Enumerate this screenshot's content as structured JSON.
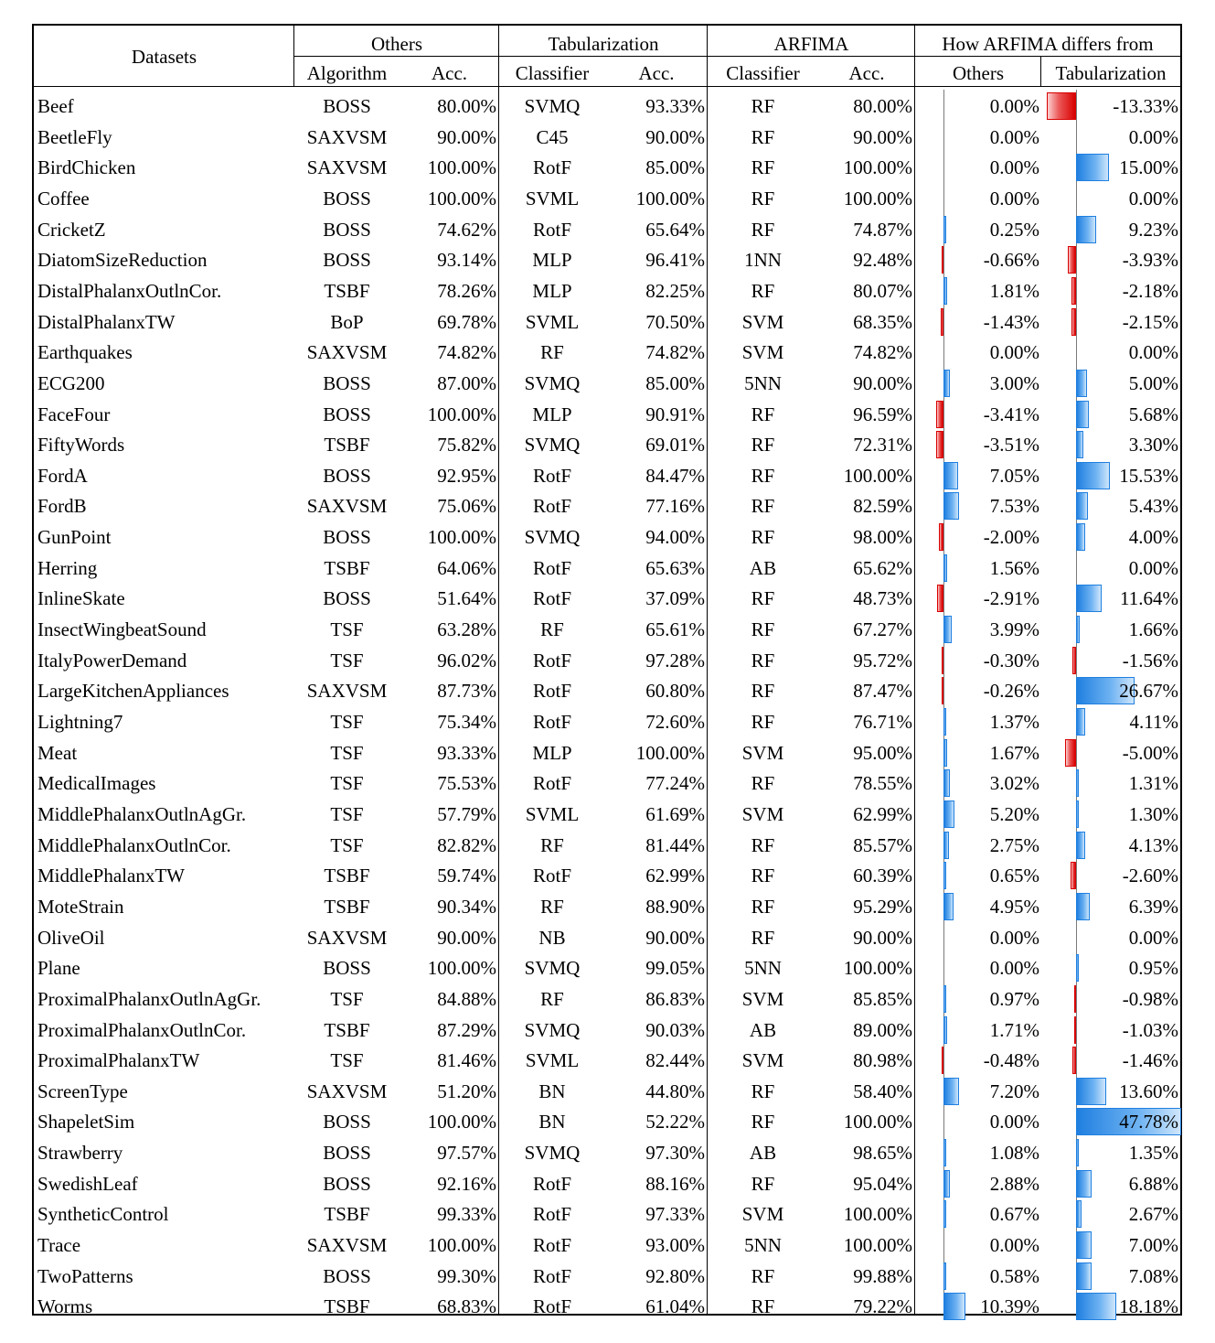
{
  "header": {
    "datasets": "Datasets",
    "others": "Others",
    "tabularization": "Tabularization",
    "arfima": "ARFIMA",
    "how": "How ARFIMA differs from",
    "algorithm": "Algorithm",
    "acc": "Acc.",
    "classifier": "Classifier",
    "diff_others": "Others",
    "diff_tab": "Tabularization"
  },
  "rows": [
    {
      "name": "Beef",
      "alg": "BOSS",
      "acc1": "80.00%",
      "cls2": "SVMQ",
      "acc2": "93.33%",
      "cls3": "RF",
      "acc3": "80.00%",
      "d1": "0.00%",
      "d1v": 0.0,
      "d2": "-13.33%",
      "d2v": -13.33
    },
    {
      "name": "BeetleFly",
      "alg": "SAXVSM",
      "acc1": "90.00%",
      "cls2": "C45",
      "acc2": "90.00%",
      "cls3": "RF",
      "acc3": "90.00%",
      "d1": "0.00%",
      "d1v": 0.0,
      "d2": "0.00%",
      "d2v": 0.0
    },
    {
      "name": "BirdChicken",
      "alg": "SAXVSM",
      "acc1": "100.00%",
      "cls2": "RotF",
      "acc2": "85.00%",
      "cls3": "RF",
      "acc3": "100.00%",
      "d1": "0.00%",
      "d1v": 0.0,
      "d2": "15.00%",
      "d2v": 15.0
    },
    {
      "name": "Coffee",
      "alg": "BOSS",
      "acc1": "100.00%",
      "cls2": "SVML",
      "acc2": "100.00%",
      "cls3": "RF",
      "acc3": "100.00%",
      "d1": "0.00%",
      "d1v": 0.0,
      "d2": "0.00%",
      "d2v": 0.0
    },
    {
      "name": "CricketZ",
      "alg": "BOSS",
      "acc1": "74.62%",
      "cls2": "RotF",
      "acc2": "65.64%",
      "cls3": "RF",
      "acc3": "74.87%",
      "d1": "0.25%",
      "d1v": 0.25,
      "d2": "9.23%",
      "d2v": 9.23
    },
    {
      "name": "DiatomSizeReduction",
      "alg": "BOSS",
      "acc1": "93.14%",
      "cls2": "MLP",
      "acc2": "96.41%",
      "cls3": "1NN",
      "acc3": "92.48%",
      "d1": "-0.66%",
      "d1v": -0.66,
      "d2": "-3.93%",
      "d2v": -3.93
    },
    {
      "name": "DistalPhalanxOutlnCor.",
      "alg": "TSBF",
      "acc1": "78.26%",
      "cls2": "MLP",
      "acc2": "82.25%",
      "cls3": "RF",
      "acc3": "80.07%",
      "d1": "1.81%",
      "d1v": 1.81,
      "d2": "-2.18%",
      "d2v": -2.18
    },
    {
      "name": "DistalPhalanxTW",
      "alg": "BoP",
      "acc1": "69.78%",
      "cls2": "SVML",
      "acc2": "70.50%",
      "cls3": "SVM",
      "acc3": "68.35%",
      "d1": "-1.43%",
      "d1v": -1.43,
      "d2": "-2.15%",
      "d2v": -2.15
    },
    {
      "name": "Earthquakes",
      "alg": "SAXVSM",
      "acc1": "74.82%",
      "cls2": "RF",
      "acc2": "74.82%",
      "cls3": "SVM",
      "acc3": "74.82%",
      "d1": "0.00%",
      "d1v": 0.0,
      "d2": "0.00%",
      "d2v": 0.0
    },
    {
      "name": "ECG200",
      "alg": "BOSS",
      "acc1": "87.00%",
      "cls2": "SVMQ",
      "acc2": "85.00%",
      "cls3": "5NN",
      "acc3": "90.00%",
      "d1": "3.00%",
      "d1v": 3.0,
      "d2": "5.00%",
      "d2v": 5.0
    },
    {
      "name": "FaceFour",
      "alg": "BOSS",
      "acc1": "100.00%",
      "cls2": "MLP",
      "acc2": "90.91%",
      "cls3": "RF",
      "acc3": "96.59%",
      "d1": "-3.41%",
      "d1v": -3.41,
      "d2": "5.68%",
      "d2v": 5.68
    },
    {
      "name": "FiftyWords",
      "alg": "TSBF",
      "acc1": "75.82%",
      "cls2": "SVMQ",
      "acc2": "69.01%",
      "cls3": "RF",
      "acc3": "72.31%",
      "d1": "-3.51%",
      "d1v": -3.51,
      "d2": "3.30%",
      "d2v": 3.3
    },
    {
      "name": "FordA",
      "alg": "BOSS",
      "acc1": "92.95%",
      "cls2": "RotF",
      "acc2": "84.47%",
      "cls3": "RF",
      "acc3": "100.00%",
      "d1": "7.05%",
      "d1v": 7.05,
      "d2": "15.53%",
      "d2v": 15.53
    },
    {
      "name": "FordB",
      "alg": "SAXVSM",
      "acc1": "75.06%",
      "cls2": "RotF",
      "acc2": "77.16%",
      "cls3": "RF",
      "acc3": "82.59%",
      "d1": "7.53%",
      "d1v": 7.53,
      "d2": "5.43%",
      "d2v": 5.43
    },
    {
      "name": "GunPoint",
      "alg": "BOSS",
      "acc1": "100.00%",
      "cls2": "SVMQ",
      "acc2": "94.00%",
      "cls3": "RF",
      "acc3": "98.00%",
      "d1": "-2.00%",
      "d1v": -2.0,
      "d2": "4.00%",
      "d2v": 4.0
    },
    {
      "name": "Herring",
      "alg": "TSBF",
      "acc1": "64.06%",
      "cls2": "RotF",
      "acc2": "65.63%",
      "cls3": "AB",
      "acc3": "65.62%",
      "d1": "1.56%",
      "d1v": 1.56,
      "d2": "0.00%",
      "d2v": 0.0
    },
    {
      "name": "InlineSkate",
      "alg": "BOSS",
      "acc1": "51.64%",
      "cls2": "RotF",
      "acc2": "37.09%",
      "cls3": "RF",
      "acc3": "48.73%",
      "d1": "-2.91%",
      "d1v": -2.91,
      "d2": "11.64%",
      "d2v": 11.64
    },
    {
      "name": "InsectWingbeatSound",
      "alg": "TSF",
      "acc1": "63.28%",
      "cls2": "RF",
      "acc2": "65.61%",
      "cls3": "RF",
      "acc3": "67.27%",
      "d1": "3.99%",
      "d1v": 3.99,
      "d2": "1.66%",
      "d2v": 1.66
    },
    {
      "name": "ItalyPowerDemand",
      "alg": "TSF",
      "acc1": "96.02%",
      "cls2": "RotF",
      "acc2": "97.28%",
      "cls3": "RF",
      "acc3": "95.72%",
      "d1": "-0.30%",
      "d1v": -0.3,
      "d2": "-1.56%",
      "d2v": -1.56
    },
    {
      "name": "LargeKitchenAppliances",
      "alg": "SAXVSM",
      "acc1": "87.73%",
      "cls2": "RotF",
      "acc2": "60.80%",
      "cls3": "RF",
      "acc3": "87.47%",
      "d1": "-0.26%",
      "d1v": -0.26,
      "d2": "26.67%",
      "d2v": 26.67
    },
    {
      "name": "Lightning7",
      "alg": "TSF",
      "acc1": "75.34%",
      "cls2": "RotF",
      "acc2": "72.60%",
      "cls3": "RF",
      "acc3": "76.71%",
      "d1": "1.37%",
      "d1v": 1.37,
      "d2": "4.11%",
      "d2v": 4.11
    },
    {
      "name": "Meat",
      "alg": "TSF",
      "acc1": "93.33%",
      "cls2": "MLP",
      "acc2": "100.00%",
      "cls3": "SVM",
      "acc3": "95.00%",
      "d1": "1.67%",
      "d1v": 1.67,
      "d2": "-5.00%",
      "d2v": -5.0
    },
    {
      "name": "MedicalImages",
      "alg": "TSF",
      "acc1": "75.53%",
      "cls2": "RotF",
      "acc2": "77.24%",
      "cls3": "RF",
      "acc3": "78.55%",
      "d1": "3.02%",
      "d1v": 3.02,
      "d2": "1.31%",
      "d2v": 1.31
    },
    {
      "name": "MiddlePhalanxOutlnAgGr.",
      "alg": "TSF",
      "acc1": "57.79%",
      "cls2": "SVML",
      "acc2": "61.69%",
      "cls3": "SVM",
      "acc3": "62.99%",
      "d1": "5.20%",
      "d1v": 5.2,
      "d2": "1.30%",
      "d2v": 1.3
    },
    {
      "name": "MiddlePhalanxOutlnCor.",
      "alg": "TSF",
      "acc1": "82.82%",
      "cls2": "RF",
      "acc2": "81.44%",
      "cls3": "RF",
      "acc3": "85.57%",
      "d1": "2.75%",
      "d1v": 2.75,
      "d2": "4.13%",
      "d2v": 4.13
    },
    {
      "name": "MiddlePhalanxTW",
      "alg": "TSBF",
      "acc1": "59.74%",
      "cls2": "RotF",
      "acc2": "62.99%",
      "cls3": "RF",
      "acc3": "60.39%",
      "d1": "0.65%",
      "d1v": 0.65,
      "d2": "-2.60%",
      "d2v": -2.6
    },
    {
      "name": "MoteStrain",
      "alg": "TSBF",
      "acc1": "90.34%",
      "cls2": "RF",
      "acc2": "88.90%",
      "cls3": "RF",
      "acc3": "95.29%",
      "d1": "4.95%",
      "d1v": 4.95,
      "d2": "6.39%",
      "d2v": 6.39
    },
    {
      "name": "OliveOil",
      "alg": "SAXVSM",
      "acc1": "90.00%",
      "cls2": "NB",
      "acc2": "90.00%",
      "cls3": "RF",
      "acc3": "90.00%",
      "d1": "0.00%",
      "d1v": 0.0,
      "d2": "0.00%",
      "d2v": 0.0
    },
    {
      "name": "Plane",
      "alg": "BOSS",
      "acc1": "100.00%",
      "cls2": "SVMQ",
      "acc2": "99.05%",
      "cls3": "5NN",
      "acc3": "100.00%",
      "d1": "0.00%",
      "d1v": 0.0,
      "d2": "0.95%",
      "d2v": 0.95
    },
    {
      "name": "ProximalPhalanxOutlnAgGr.",
      "alg": "TSF",
      "acc1": "84.88%",
      "cls2": "RF",
      "acc2": "86.83%",
      "cls3": "SVM",
      "acc3": "85.85%",
      "d1": "0.97%",
      "d1v": 0.97,
      "d2": "-0.98%",
      "d2v": -0.98
    },
    {
      "name": "ProximalPhalanxOutlnCor.",
      "alg": "TSBF",
      "acc1": "87.29%",
      "cls2": "SVMQ",
      "acc2": "90.03%",
      "cls3": "AB",
      "acc3": "89.00%",
      "d1": "1.71%",
      "d1v": 1.71,
      "d2": "-1.03%",
      "d2v": -1.03
    },
    {
      "name": "ProximalPhalanxTW",
      "alg": "TSF",
      "acc1": "81.46%",
      "cls2": "SVML",
      "acc2": "82.44%",
      "cls3": "SVM",
      "acc3": "80.98%",
      "d1": "-0.48%",
      "d1v": -0.48,
      "d2": "-1.46%",
      "d2v": -1.46
    },
    {
      "name": "ScreenType",
      "alg": "SAXVSM",
      "acc1": "51.20%",
      "cls2": "BN",
      "acc2": "44.80%",
      "cls3": "RF",
      "acc3": "58.40%",
      "d1": "7.20%",
      "d1v": 7.2,
      "d2": "13.60%",
      "d2v": 13.6
    },
    {
      "name": "ShapeletSim",
      "alg": "BOSS",
      "acc1": "100.00%",
      "cls2": "BN",
      "acc2": "52.22%",
      "cls3": "RF",
      "acc3": "100.00%",
      "d1": "0.00%",
      "d1v": 0.0,
      "d2": "47.78%",
      "d2v": 47.78
    },
    {
      "name": "Strawberry",
      "alg": "BOSS",
      "acc1": "97.57%",
      "cls2": "SVMQ",
      "acc2": "97.30%",
      "cls3": "AB",
      "acc3": "98.65%",
      "d1": "1.08%",
      "d1v": 1.08,
      "d2": "1.35%",
      "d2v": 1.35
    },
    {
      "name": "SwedishLeaf",
      "alg": "BOSS",
      "acc1": "92.16%",
      "cls2": "RotF",
      "acc2": "88.16%",
      "cls3": "RF",
      "acc3": "95.04%",
      "d1": "2.88%",
      "d1v": 2.88,
      "d2": "6.88%",
      "d2v": 6.88
    },
    {
      "name": "SyntheticControl",
      "alg": "TSBF",
      "acc1": "99.33%",
      "cls2": "RotF",
      "acc2": "97.33%",
      "cls3": "SVM",
      "acc3": "100.00%",
      "d1": "0.67%",
      "d1v": 0.67,
      "d2": "2.67%",
      "d2v": 2.67
    },
    {
      "name": "Trace",
      "alg": "SAXVSM",
      "acc1": "100.00%",
      "cls2": "RotF",
      "acc2": "93.00%",
      "cls3": "5NN",
      "acc3": "100.00%",
      "d1": "0.00%",
      "d1v": 0.0,
      "d2": "7.00%",
      "d2v": 7.0
    },
    {
      "name": "TwoPatterns",
      "alg": "BOSS",
      "acc1": "99.30%",
      "cls2": "RotF",
      "acc2": "92.80%",
      "cls3": "RF",
      "acc3": "99.88%",
      "d1": "0.58%",
      "d1v": 0.58,
      "d2": "7.08%",
      "d2v": 7.08
    },
    {
      "name": "Worms",
      "alg": "TSBF",
      "acc1": "68.83%",
      "cls2": "RotF",
      "acc2": "61.04%",
      "cls3": "RF",
      "acc3": "79.22%",
      "d1": "10.39%",
      "d1v": 10.39,
      "d2": "18.18%",
      "d2v": 18.18
    }
  ],
  "colors": {
    "positive": "#1f7fe0",
    "negative": "#d80000",
    "border": "#000000"
  }
}
